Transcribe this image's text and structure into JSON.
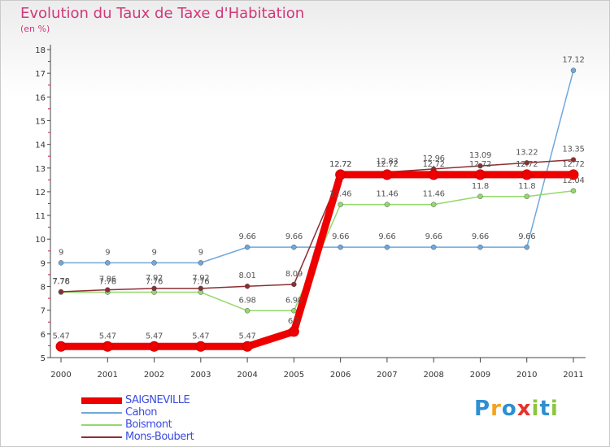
{
  "chart_data": {
    "type": "line",
    "title": "Evolution du Taux de Taxe d'Habitation",
    "subtitle": "(en %)",
    "xlabel": "",
    "ylabel": "",
    "x": [
      "2000",
      "2001",
      "2002",
      "2003",
      "2004",
      "2005",
      "2006",
      "2007",
      "2008",
      "2009",
      "2010",
      "2011"
    ],
    "ylim": [
      5,
      18
    ],
    "yticks": [
      5,
      6,
      7,
      8,
      9,
      10,
      11,
      12,
      13,
      14,
      15,
      16,
      17,
      18
    ],
    "series": [
      {
        "name": "SAIGNEVILLE",
        "color": "#ee0000",
        "values": [
          5.47,
          5.47,
          5.47,
          5.47,
          5.47,
          6.1,
          12.72,
          12.72,
          12.72,
          12.72,
          12.72,
          12.72
        ],
        "labels": [
          "5.47",
          "5.47",
          "5.47",
          "5.47",
          "5.47",
          "6.1",
          "12.72",
          "12.72",
          "12.72",
          "12.72",
          "12.72",
          "12.72"
        ]
      },
      {
        "name": "Cahon",
        "color": "#6fa8dc",
        "values": [
          9,
          9,
          9,
          9,
          9.66,
          9.66,
          9.66,
          9.66,
          9.66,
          9.66,
          9.66,
          17.12
        ],
        "labels": [
          "9",
          "9",
          "9",
          "9",
          "9.66",
          "9.66",
          "9.66",
          "9.66",
          "9.66",
          "9.66",
          "9.66",
          "17.12"
        ]
      },
      {
        "name": "Boismont",
        "color": "#93d96b",
        "values": [
          7.76,
          7.76,
          7.76,
          7.76,
          6.98,
          6.98,
          11.46,
          11.46,
          11.46,
          11.8,
          11.8,
          12.04
        ],
        "labels": [
          "7.76",
          "7.76",
          "7.76",
          "7.76",
          "6.98",
          "6.98",
          "11.46",
          "11.46",
          "11.46",
          "11.8",
          "11.8",
          "12.04"
        ]
      },
      {
        "name": "Mons-Boubert",
        "color": "#8b2e34",
        "values": [
          7.78,
          7.86,
          7.92,
          7.92,
          8.01,
          8.09,
          12.72,
          12.83,
          12.96,
          13.09,
          13.22,
          13.35
        ],
        "labels": [
          "7.78",
          "7.86",
          "7.92",
          "7.92",
          "8.01",
          "8.09",
          "12.72",
          "12.83",
          "12.96",
          "13.09",
          "13.22",
          "13.35"
        ]
      }
    ],
    "legend_position": "bottom-left",
    "grid": false
  },
  "logo": {
    "letters": [
      "P",
      "r",
      "o",
      "x",
      "i",
      "t",
      "i"
    ],
    "colors": [
      "#2e8fd1",
      "#f4a21e",
      "#2e8fd1",
      "#e8322b",
      "#8cc63f",
      "#2e8fd1",
      "#8cc63f"
    ]
  }
}
